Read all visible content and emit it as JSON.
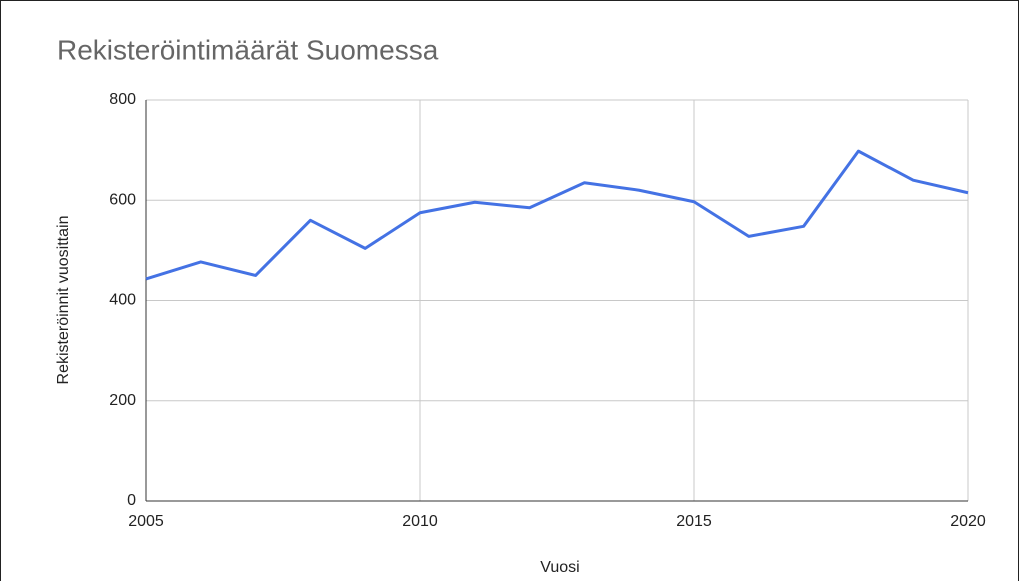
{
  "chart_data": {
    "type": "line",
    "title": "Rekisteröintimäärät Suomessa",
    "x_label": "Vuosi",
    "y_label": "Rekisteröinnit vuosittain",
    "x": [
      2005,
      2006,
      2007,
      2008,
      2009,
      2010,
      2011,
      2012,
      2013,
      2014,
      2015,
      2016,
      2017,
      2018,
      2019,
      2020
    ],
    "series": [
      {
        "name": "Rekisteröinnit vuosittain",
        "color": "#4472e4",
        "values": [
          443,
          477,
          450,
          560,
          504,
          575,
          596,
          585,
          635,
          620,
          597,
          528,
          548,
          698,
          640,
          615
        ]
      }
    ],
    "xlim": [
      2005,
      2020
    ],
    "xticks": [
      2005,
      2010,
      2015,
      2020
    ],
    "ylim": [
      0,
      800
    ],
    "yticks": [
      0,
      200,
      400,
      600,
      800
    ],
    "grid": true
  }
}
